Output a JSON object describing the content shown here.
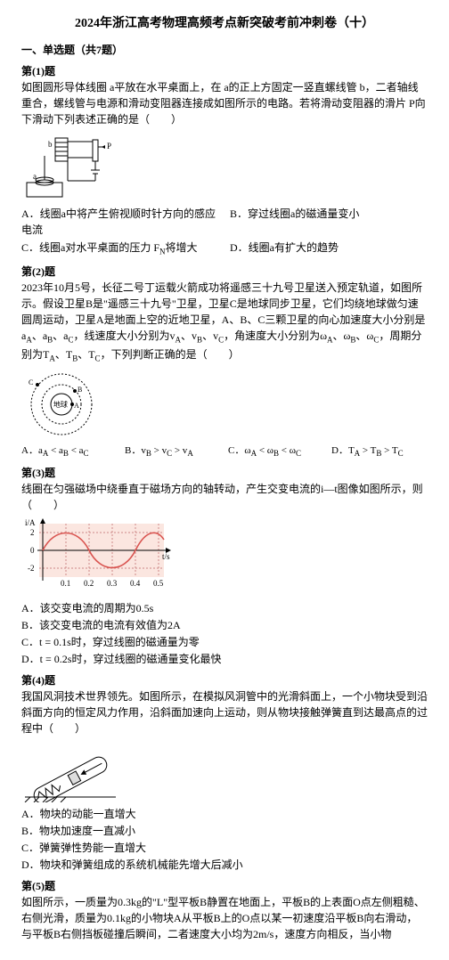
{
  "title": "2024年浙江高考物理高频考点新突破考前冲刺卷（十）",
  "section1": "一、单选题（共7题）",
  "q1": {
    "header": "第(1)题",
    "body": "如图圆形导体线圈 a平放在水平桌面上，在 a的正上方固定一竖直螺线管 b，二者轴线重合，螺线管与电源和滑动变阻器连接成如图所示的电路。若将滑动变阻器的滑片 P向下滑动下列表述正确的是（　　）",
    "optA": "A．线圈a中将产生俯视顺时针方向的感应电流",
    "optB": "B．穿过线圈a的磁通量变小",
    "optC": "C．线圈a对水平桌面的压力 F<sub>N</sub>将增大",
    "optD": "D．线圈a有扩大的趋势"
  },
  "q2": {
    "header": "第(2)题",
    "body": "2023年10月5号，长征二号丁运载火箭成功将遥感三十九号卫星送入预定轨道，如图所示。假设卫星B是\"遥感三十九号\"卫星，卫星C是地球同步卫星，它们均绕地球做匀速圆周运动，卫星A是地面上空的近地卫星，A、B、C三颗卫星的向心加速度大小分别是a<sub>A</sub>、a<sub>B</sub>、a<sub>C</sub>，线速度大小分别为v<sub>A</sub>、v<sub>B</sub>、v<sub>C</sub>，角速度大小分别为ω<sub>A</sub>、ω<sub>B</sub>、ω<sub>C</sub>，周期分别为T<sub>A</sub>、T<sub>B</sub>、T<sub>C</sub>，下列判断正确的是（　　）",
    "optA": "A．a<sub>A</sub> &lt; a<sub>B</sub> &lt; a<sub>C</sub>",
    "optB": "B．v<sub>B</sub> &gt; v<sub>C</sub> &gt; v<sub>A</sub>",
    "optC": "C．ω<sub>A</sub> &lt; ω<sub>B</sub> &lt; ω<sub>C</sub>",
    "optD": "D．T<sub>A</sub> &gt; T<sub>B</sub> &gt; T<sub>C</sub>"
  },
  "q3": {
    "header": "第(3)题",
    "body": "线圈在匀强磁场中绕垂直于磁场方向的轴转动，产生交变电流的i—t图像如图所示，则（　　）",
    "optA": "A．该交变电流的周期为0.5s",
    "optB": "B．该交变电流的电流有效值为2A",
    "optC": "C．t = 0.1s时，穿过线圈的磁通量为零",
    "optD": "D．t = 0.2s时，穿过线圈的磁通量变化最快",
    "chart": {
      "ylabel": "i/A",
      "xlabel": "t/s",
      "xticks": [
        "0",
        "0.1",
        "0.2",
        "0.3",
        "0.4",
        "0.5"
      ],
      "yticks": [
        "-2",
        "0",
        "2"
      ],
      "amplitude": 2,
      "period": 0.4,
      "line_color": "#d9534f",
      "bg_top": "#fdeef0",
      "bg_mid": "#fbe6e0",
      "grid_color": "#cc8888"
    }
  },
  "q4": {
    "header": "第(4)题",
    "body": "我国风洞技术世界领先。如图所示，在模拟风洞管中的光滑斜面上，一个小物块受到沿斜面方向的恒定风力作用，沿斜面加速向上运动，则从物块接触弹簧直到达最高点的过程中（　　）",
    "optA": "A．物块的动能一直增大",
    "optB": "B．物块加速度一直减小",
    "optC": "C．弹簧弹性势能一直增大",
    "optD": "D．物块和弹簧组成的系统机械能先增大后减小"
  },
  "q5": {
    "header": "第(5)题",
    "body": "如图所示，一质量为0.3kg的\"L\"型平板B静置在地面上，平板B的上表面O点左侧粗糙、右侧光滑，质量为0.1kg的小物块A从平板B上的O点以某一初速度沿平板B向右滑动，与平板B右侧挡板碰撞后瞬间，二者速度大小均为2m/s，速度方向相反，当小物"
  }
}
